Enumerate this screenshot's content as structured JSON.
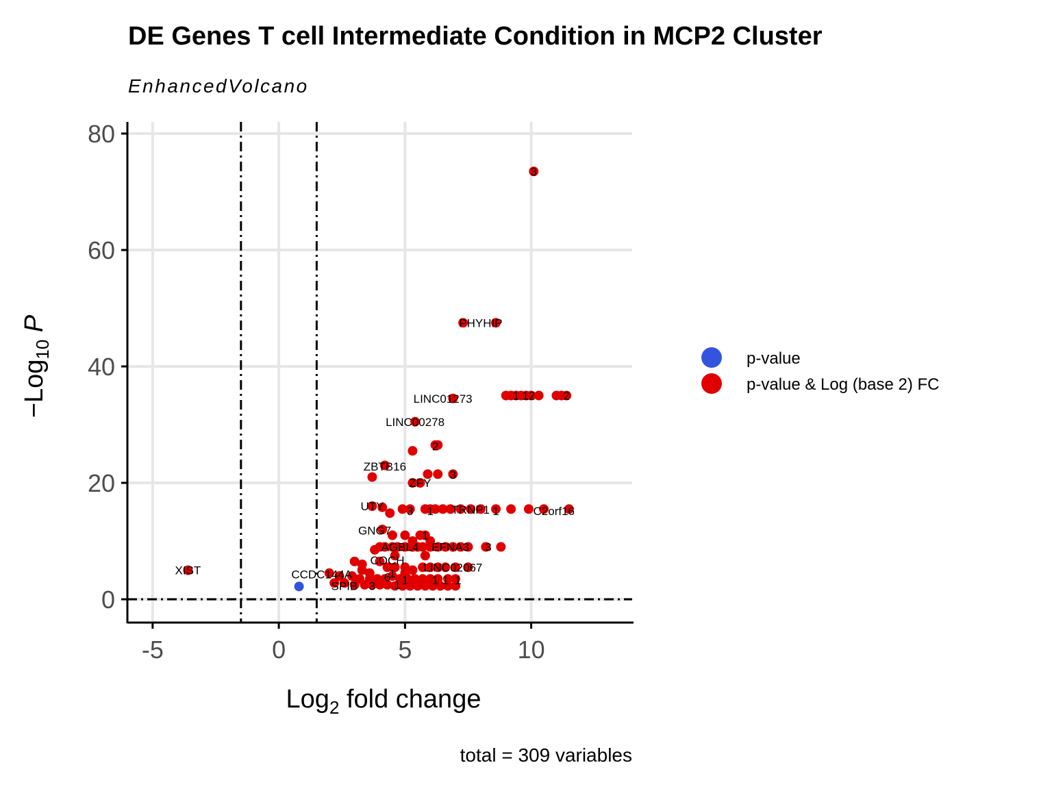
{
  "chart_data": {
    "type": "scatter",
    "title": "DE Genes T cell Intermediate Condition in MCP2 Cluster",
    "subtitle": "EnhancedVolcano",
    "xlabel": "Log2 fold change",
    "ylabel": "-Log10 P",
    "caption": "total = 309 variables",
    "xlim": [
      -6,
      14
    ],
    "ylim": [
      -4,
      82
    ],
    "x_ticks": [
      -5,
      0,
      5,
      10
    ],
    "y_ticks": [
      0,
      20,
      40,
      60,
      80
    ],
    "grid": true,
    "fc_cutoff": 1.5,
    "p_cutoff_log10": 0,
    "legend_position": "right",
    "series": [
      {
        "name": "p-value",
        "color": "#3355dd",
        "points": [
          [
            0.8,
            2.2
          ]
        ]
      },
      {
        "name": "p-value & Log (base 2) FC",
        "color": "#e00000",
        "points": [
          [
            10.1,
            73.5
          ],
          [
            7.3,
            47.5
          ],
          [
            8.6,
            47.5
          ],
          [
            6.9,
            34.5
          ],
          [
            9.0,
            35.0
          ],
          [
            9.2,
            35.0
          ],
          [
            9.4,
            35.0
          ],
          [
            9.6,
            35.0
          ],
          [
            9.8,
            35.0
          ],
          [
            10.0,
            35.0
          ],
          [
            10.3,
            35.0
          ],
          [
            11.0,
            35.0
          ],
          [
            11.2,
            35.0
          ],
          [
            11.4,
            35.0
          ],
          [
            5.4,
            30.5
          ],
          [
            6.2,
            26.5
          ],
          [
            6.3,
            26.5
          ],
          [
            5.3,
            25.5
          ],
          [
            4.2,
            23.0
          ],
          [
            5.9,
            21.5
          ],
          [
            6.3,
            21.5
          ],
          [
            6.9,
            21.5
          ],
          [
            3.7,
            21.0
          ],
          [
            5.3,
            20.0
          ],
          [
            5.6,
            20.0
          ],
          [
            3.7,
            16.0
          ],
          [
            4.1,
            15.8
          ],
          [
            4.4,
            14.8
          ],
          [
            4.9,
            15.5
          ],
          [
            5.2,
            15.5
          ],
          [
            5.8,
            15.5
          ],
          [
            6.0,
            15.5
          ],
          [
            6.2,
            15.5
          ],
          [
            6.5,
            15.5
          ],
          [
            6.8,
            15.5
          ],
          [
            7.2,
            15.5
          ],
          [
            7.6,
            15.5
          ],
          [
            8.0,
            15.5
          ],
          [
            8.6,
            15.5
          ],
          [
            9.2,
            15.5
          ],
          [
            9.9,
            15.5
          ],
          [
            10.5,
            15.5
          ],
          [
            11.5,
            15.5
          ],
          [
            4.1,
            12.0
          ],
          [
            5.0,
            11.0
          ],
          [
            5.6,
            11.0
          ],
          [
            5.8,
            11.0
          ],
          [
            4.5,
            11.0
          ],
          [
            5.3,
            10.0
          ],
          [
            6.0,
            10.0
          ],
          [
            3.8,
            8.5
          ],
          [
            4.0,
            9.0
          ],
          [
            4.2,
            9.0
          ],
          [
            4.5,
            9.0
          ],
          [
            4.7,
            9.0
          ],
          [
            5.0,
            9.0
          ],
          [
            5.3,
            9.0
          ],
          [
            5.5,
            9.0
          ],
          [
            5.7,
            9.0
          ],
          [
            6.0,
            9.0
          ],
          [
            6.3,
            9.0
          ],
          [
            6.6,
            9.0
          ],
          [
            6.9,
            9.0
          ],
          [
            7.2,
            9.0
          ],
          [
            7.5,
            9.0
          ],
          [
            8.2,
            9.0
          ],
          [
            8.8,
            9.0
          ],
          [
            5.8,
            7.5
          ],
          [
            4.6,
            7.5
          ],
          [
            3.0,
            6.5
          ],
          [
            3.3,
            6.0
          ],
          [
            4.0,
            6.5
          ],
          [
            4.3,
            5.5
          ],
          [
            4.6,
            5.5
          ],
          [
            5.0,
            5.5
          ],
          [
            5.3,
            5.0
          ],
          [
            5.7,
            5.5
          ],
          [
            6.0,
            5.5
          ],
          [
            6.3,
            5.5
          ],
          [
            6.6,
            5.5
          ],
          [
            7.0,
            5.5
          ],
          [
            7.5,
            5.5
          ],
          [
            2.0,
            4.5
          ],
          [
            2.4,
            4.0
          ],
          [
            2.9,
            4.0
          ],
          [
            3.2,
            3.5
          ],
          [
            3.6,
            3.5
          ],
          [
            3.9,
            3.5
          ],
          [
            4.2,
            3.5
          ],
          [
            4.5,
            4.0
          ],
          [
            4.8,
            3.5
          ],
          [
            5.1,
            3.5
          ],
          [
            5.4,
            3.5
          ],
          [
            5.7,
            3.5
          ],
          [
            6.0,
            3.5
          ],
          [
            6.3,
            3.5
          ],
          [
            6.7,
            3.5
          ],
          [
            7.0,
            3.5
          ],
          [
            2.2,
            2.8
          ],
          [
            2.6,
            2.8
          ],
          [
            3.0,
            2.5
          ],
          [
            3.4,
            2.5
          ],
          [
            3.7,
            2.5
          ],
          [
            4.0,
            2.5
          ],
          [
            4.3,
            2.5
          ],
          [
            4.6,
            2.3
          ],
          [
            4.9,
            2.3
          ],
          [
            5.2,
            2.3
          ],
          [
            5.5,
            2.3
          ],
          [
            5.8,
            2.3
          ],
          [
            6.1,
            2.3
          ],
          [
            6.4,
            2.3
          ],
          [
            6.7,
            2.3
          ],
          [
            7.0,
            2.3
          ],
          [
            3.3,
            5.0
          ],
          [
            3.6,
            4.5
          ],
          [
            5.0,
            4.5
          ],
          [
            -3.6,
            5.0
          ]
        ]
      }
    ],
    "annotations": [
      {
        "text": "3",
        "x": 10.1,
        "y": 73.5
      },
      {
        "text": "PHYHIP",
        "x": 8.0,
        "y": 47.5
      },
      {
        "text": "LINC01273",
        "x": 6.5,
        "y": 34.5
      },
      {
        "text": "1",
        "x": 9.4,
        "y": 35.0
      },
      {
        "text": "12",
        "x": 9.9,
        "y": 35.0
      },
      {
        "text": "2",
        "x": 11.4,
        "y": 35.0
      },
      {
        "text": "LINC00278",
        "x": 5.4,
        "y": 30.5
      },
      {
        "text": "2",
        "x": 6.2,
        "y": 26.3
      },
      {
        "text": "ZBTB16",
        "x": 4.2,
        "y": 22.8
      },
      {
        "text": "3",
        "x": 6.9,
        "y": 21.4
      },
      {
        "text": "ZFY",
        "x": 5.6,
        "y": 20.0
      },
      {
        "text": "UTY",
        "x": 3.7,
        "y": 16.0
      },
      {
        "text": "3",
        "x": 5.2,
        "y": 15.2
      },
      {
        "text": "1",
        "x": 6.0,
        "y": 15.2
      },
      {
        "text": "TRNP1",
        "x": 7.6,
        "y": 15.4
      },
      {
        "text": "1",
        "x": 8.6,
        "y": 15.2
      },
      {
        "text": "C2orf16",
        "x": 10.9,
        "y": 15.2
      },
      {
        "text": "GNG7",
        "x": 3.8,
        "y": 11.8
      },
      {
        "text": "1",
        "x": 5.8,
        "y": 11.0
      },
      {
        "text": "AGBL4",
        "x": 4.8,
        "y": 9.0
      },
      {
        "text": "EFNA3",
        "x": 6.8,
        "y": 9.0
      },
      {
        "text": "3",
        "x": 8.3,
        "y": 9.0
      },
      {
        "text": "COCH",
        "x": 4.3,
        "y": 6.7
      },
      {
        "text": "LINC02067",
        "x": 6.9,
        "y": 5.5
      },
      {
        "text": "XIST",
        "x": -3.6,
        "y": 5.0
      },
      {
        "text": "CCDC144A",
        "x": 1.7,
        "y": 4.3
      },
      {
        "text": "6",
        "x": 4.3,
        "y": 3.8
      },
      {
        "text": "1",
        "x": 4.5,
        "y": 4.5
      },
      {
        "text": "SPIB",
        "x": 2.6,
        "y": 2.3
      },
      {
        "text": "3",
        "x": 3.7,
        "y": 2.3
      },
      {
        "text": "1",
        "x": 5.0,
        "y": 3.3
      },
      {
        "text": "1",
        "x": 4.7,
        "y": 2.5
      },
      {
        "text": "1",
        "x": 6.2,
        "y": 3.3
      },
      {
        "text": "1",
        "x": 6.6,
        "y": 3.3
      },
      {
        "text": "1",
        "x": 7.1,
        "y": 3.3
      }
    ]
  }
}
